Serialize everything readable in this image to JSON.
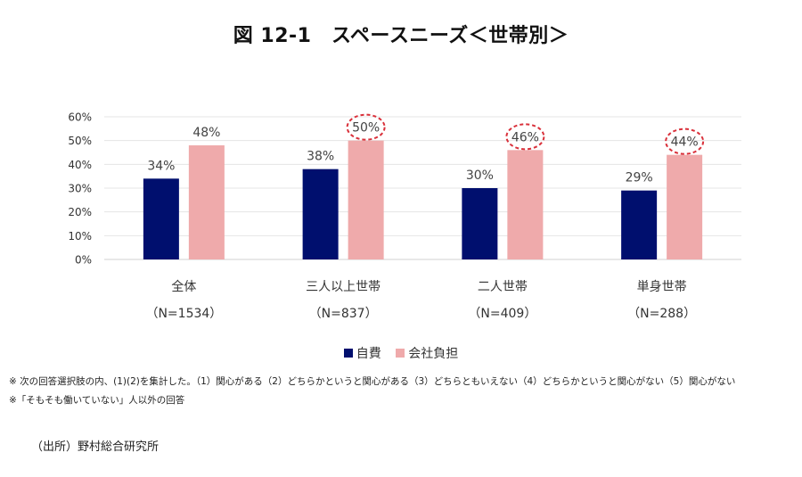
{
  "title": "図 12-1　スペースニーズ＜世帯別＞",
  "chart_data": {
    "type": "bar",
    "title": "図 12-1　スペースニーズ＜世帯別＞",
    "xlabel": "",
    "ylabel": "",
    "ylim": [
      0,
      60
    ],
    "yticks": [
      0,
      10,
      20,
      30,
      40,
      50,
      60
    ],
    "ytick_labels": [
      "0%",
      "10%",
      "20%",
      "30%",
      "40%",
      "50%",
      "60%"
    ],
    "grid": true,
    "categories": [
      "全体",
      "三人以上世帯",
      "二人世帯",
      "単身世帯"
    ],
    "category_sublabels": [
      "（N=1534）",
      "（N=837）",
      "（N=409）",
      "（N=288）"
    ],
    "series": [
      {
        "name": "自費",
        "color": "#000f6e",
        "values": [
          34,
          38,
          30,
          29
        ],
        "labels": [
          "34%",
          "38%",
          "30%",
          "29%"
        ],
        "highlighted": [
          false,
          false,
          false,
          false
        ]
      },
      {
        "name": "会社負担",
        "color": "#efaaab",
        "values": [
          48,
          50,
          46,
          44
        ],
        "labels": [
          "48%",
          "50%",
          "46%",
          "44%"
        ],
        "highlighted": [
          false,
          true,
          true,
          true
        ]
      }
    ],
    "highlight_color": "#d9303a",
    "legend_position": "bottom"
  },
  "notes": [
    "※ 次の回答選択肢の内、(1)(2)を集計した。（1）関心がある（2）どちらかというと関心がある（3）どちらともいえない（4）どちらかというと関心がない（5）関心がない",
    "※「そもそも働いていない」人以外の回答"
  ],
  "source": "（出所）野村総合研究所"
}
